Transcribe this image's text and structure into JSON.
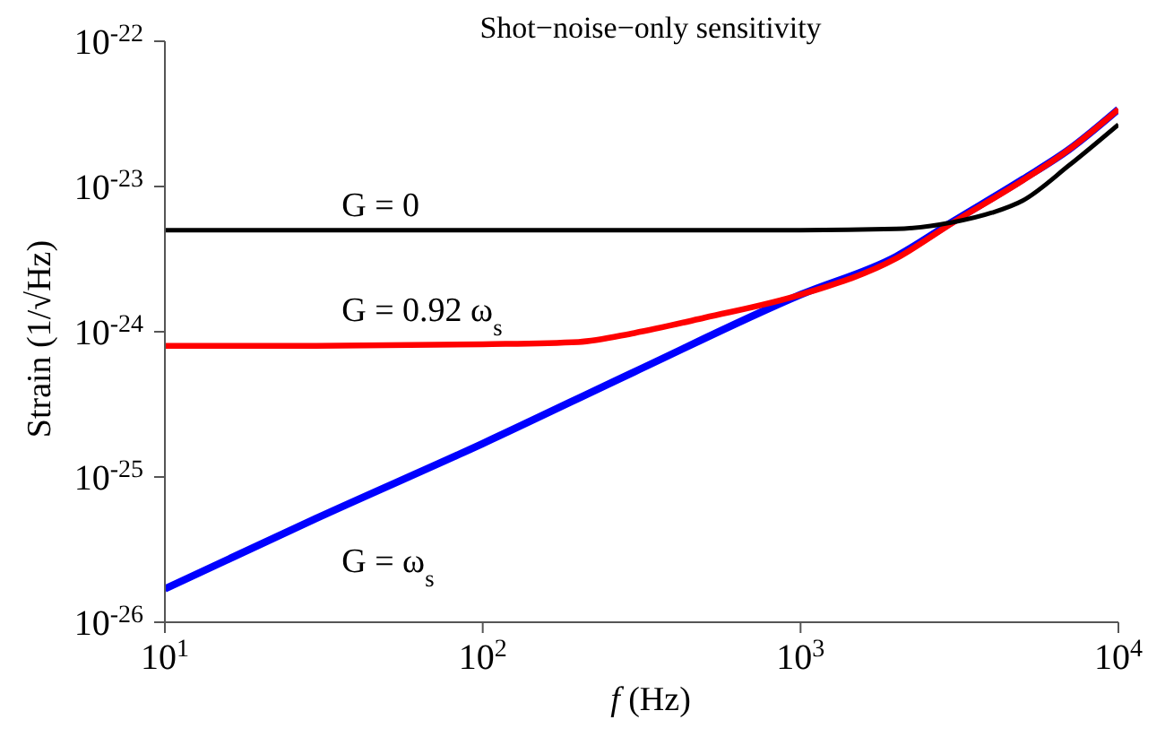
{
  "chart_data": {
    "type": "line",
    "title": "Shot−noise−only sensitivity",
    "xlabel": "f (Hz)",
    "ylabel": "Strain (1/√Hz)",
    "log": "xy",
    "grid": false,
    "legend": false,
    "marker": "none",
    "line_style": "solid",
    "xlim": [
      10,
      10000
    ],
    "xticks": [
      {
        "value": 10,
        "label": "10$^{1}$"
      },
      {
        "value": 100,
        "label": "10$^{2}$"
      },
      {
        "value": 1000,
        "label": "10$^{3}$"
      },
      {
        "value": 10000,
        "label": "10$^{4}$"
      }
    ],
    "ylim": [
      1e-26,
      1e-22
    ],
    "yticks": [
      {
        "value": 1e-26,
        "label": "10$^{-26}$"
      },
      {
        "value": 1e-25,
        "label": "10$^{-25}$"
      },
      {
        "value": 1e-24,
        "label": "10$^{-24}$"
      },
      {
        "value": 1e-23,
        "label": "10$^{-23}$"
      },
      {
        "value": 1e-22,
        "label": "10$^{-22}$"
      }
    ],
    "series": [
      {
        "name": "G = 0",
        "color": "#000000",
        "x": [
          10,
          30,
          100,
          300,
          1000,
          2000,
          3000,
          4000,
          5000,
          7000,
          10000
        ],
        "values": [
          5e-24,
          5e-24,
          5e-24,
          5e-24,
          5e-24,
          5.1e-24,
          5.66e-24,
          6.6e-24,
          8e-24,
          1.4e-23,
          2.67e-23
        ]
      },
      {
        "name": "G = 0.92 ω$_{s}$",
        "color": "#ff0000",
        "x": [
          10,
          30,
          100,
          200,
          300,
          500,
          1000,
          2000,
          3000,
          5000,
          7000,
          10000
        ],
        "values": [
          8e-25,
          8e-25,
          8.2e-25,
          8.5e-25,
          9.8e-25,
          1.25e-24,
          1.8e-24,
          3.2e-24,
          5.6e-24,
          1.1e-23,
          1.8e-23,
          3.4e-23
        ]
      },
      {
        "name": "G = ω$_{s}$",
        "color": "#0000ff",
        "x": [
          10,
          30,
          100,
          300,
          1000,
          2000,
          3000,
          5000,
          7000,
          10000
        ],
        "values": [
          1.7e-26,
          5.2e-26,
          1.7e-25,
          5.3e-25,
          1.8e-24,
          3.3e-24,
          5.7e-24,
          1.12e-23,
          1.8e-23,
          3.4e-23
        ]
      }
    ]
  }
}
